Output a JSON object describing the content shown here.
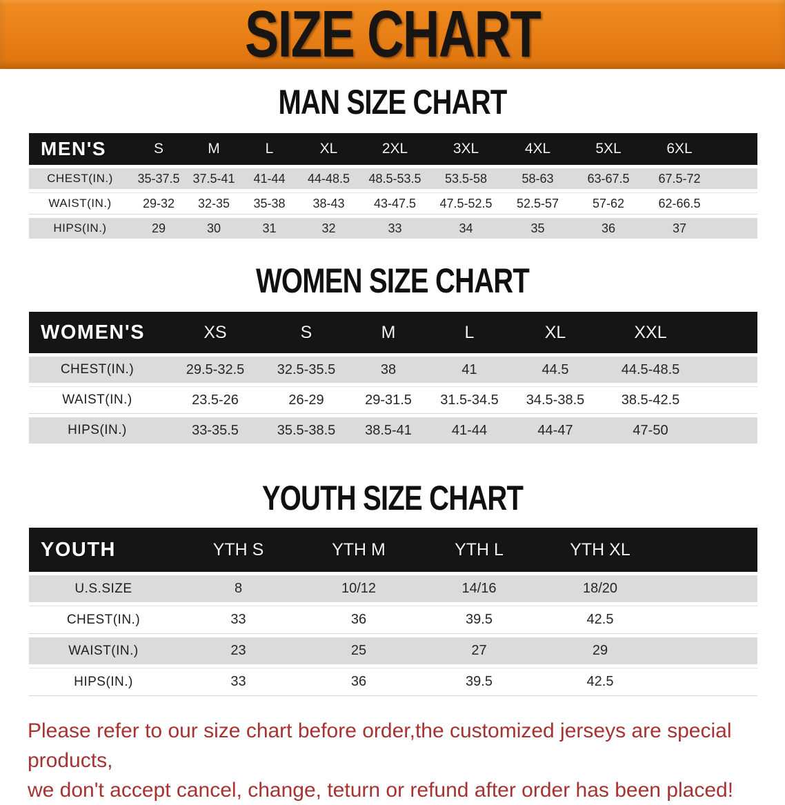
{
  "colors": {
    "banner_orange": "#E87E16",
    "header_black": "#151515",
    "row_gray": "#DBDBDB",
    "note_red": "#A63232"
  },
  "banner": {
    "title": "SIZE CHART"
  },
  "tables": [
    {
      "id": "men",
      "title": "MAN SIZE CHART",
      "corner_label": "MEN'S",
      "sizes": [
        "S",
        "M",
        "L",
        "XL",
        "2XL",
        "3XL",
        "4XL",
        "5XL",
        "6XL"
      ],
      "rows": [
        {
          "label": "CHEST(IN.)",
          "values": [
            "35-37.5",
            "37.5-41",
            "41-44",
            "44-48.5",
            "48.5-53.5",
            "53.5-58",
            "58-63",
            "63-67.5",
            "67.5-72"
          ]
        },
        {
          "label": "WAIST(IN.)",
          "values": [
            "29-32",
            "32-35",
            "35-38",
            "38-43",
            "43-47.5",
            "47.5-52.5",
            "52.5-57",
            "57-62",
            "62-66.5"
          ]
        },
        {
          "label": "HIPS(IN.)",
          "values": [
            "29",
            "30",
            "31",
            "32",
            "33",
            "34",
            "35",
            "36",
            "37"
          ]
        }
      ]
    },
    {
      "id": "women",
      "title": "WOMEN SIZE CHART",
      "corner_label": "WOMEN'S",
      "sizes": [
        "XS",
        "S",
        "M",
        "L",
        "XL",
        "XXL"
      ],
      "rows": [
        {
          "label": "CHEST(IN.)",
          "values": [
            "29.5-32.5",
            "32.5-35.5",
            "38",
            "41",
            "44.5",
            "44.5-48.5"
          ]
        },
        {
          "label": "WAIST(IN.)",
          "values": [
            "23.5-26",
            "26-29",
            "29-31.5",
            "31.5-34.5",
            "34.5-38.5",
            "38.5-42.5"
          ]
        },
        {
          "label": "HIPS(IN.)",
          "values": [
            "33-35.5",
            "35.5-38.5",
            "38.5-41",
            "41-44",
            "44-47",
            "47-50"
          ]
        }
      ]
    },
    {
      "id": "youth",
      "title": "YOUTH SIZE CHART",
      "corner_label": "YOUTH",
      "sizes": [
        "YTH S",
        "YTH M",
        "YTH L",
        "YTH XL"
      ],
      "rows": [
        {
          "label": "U.S.SIZE",
          "values": [
            "8",
            "10/12",
            "14/16",
            "18/20"
          ]
        },
        {
          "label": "CHEST(IN.)",
          "values": [
            "33",
            "36",
            "39.5",
            "42.5"
          ]
        },
        {
          "label": "WAIST(IN.)",
          "values": [
            "23",
            "25",
            "27",
            "29"
          ]
        },
        {
          "label": "HIPS(IN.)",
          "values": [
            "33",
            "36",
            "39.5",
            "42.5"
          ]
        }
      ]
    }
  ],
  "note": {
    "line1": "Please refer to our size chart before order,the customized jerseys are special products,",
    "line2": "we don't accept cancel, change, teturn or refund after order has been placed!"
  }
}
